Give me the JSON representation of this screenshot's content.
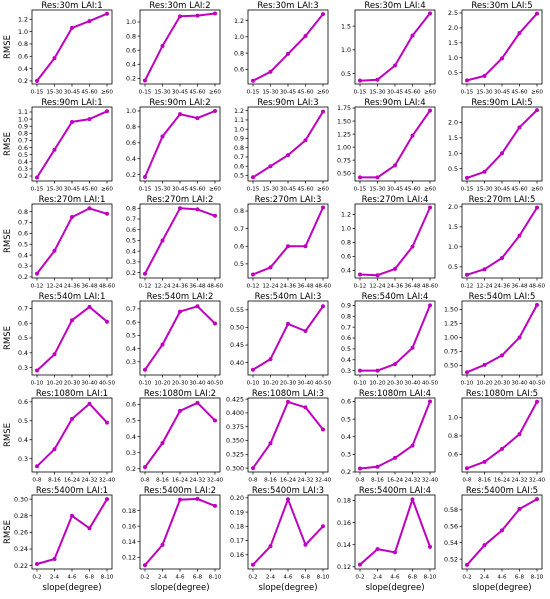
{
  "figure": {
    "ylabel": "RMSE",
    "xlabel": "slope(degree)",
    "line_color": "#bf00bf"
  },
  "chart_data": [
    {
      "type": "line",
      "title": "Res:30m   LAI:1",
      "categories": [
        "0-15",
        "15-30",
        "30-45",
        "45-60",
        "≥60"
      ],
      "values": [
        0.2,
        0.57,
        1.06,
        1.17,
        1.29
      ],
      "ylim": [
        0.15,
        1.35
      ],
      "yticks": [
        0.2,
        0.4,
        0.6,
        0.8,
        1.0,
        1.2
      ],
      "ytick_labels": [
        "0.2",
        "0.4",
        "0.6",
        "0.8",
        "1.0",
        "1.2"
      ]
    },
    {
      "type": "line",
      "title": "Res:30m   LAI:2",
      "categories": [
        "0-15",
        "15-30",
        "30-45",
        "45-60",
        "≥60"
      ],
      "values": [
        0.17,
        0.66,
        1.08,
        1.09,
        1.12
      ],
      "ylim": [
        0.12,
        1.17
      ],
      "yticks": [
        0.2,
        0.4,
        0.6,
        0.8,
        1.0
      ],
      "ytick_labels": [
        "0.2",
        "0.4",
        "0.6",
        "0.8",
        "1.0"
      ]
    },
    {
      "type": "line",
      "title": "Res:30m   LAI:3",
      "categories": [
        "0-15",
        "15-30",
        "30-45",
        "45-60",
        "≥60"
      ],
      "values": [
        0.46,
        0.57,
        0.79,
        1.01,
        1.28
      ],
      "ylim": [
        0.42,
        1.33
      ],
      "yticks": [
        0.6,
        0.8,
        1.0,
        1.2
      ],
      "ytick_labels": [
        "0.6",
        "0.8",
        "1.0",
        "1.2"
      ]
    },
    {
      "type": "line",
      "title": "Res:30m   LAI:4",
      "categories": [
        "0-15",
        "15-30",
        "30-45",
        "45-60",
        "≥60"
      ],
      "values": [
        0.35,
        0.37,
        0.67,
        1.3,
        1.77
      ],
      "ylim": [
        0.28,
        1.84
      ],
      "yticks": [
        0.5,
        1.0,
        1.5
      ],
      "ytick_labels": [
        "0.5",
        "1.0",
        "1.5"
      ]
    },
    {
      "type": "line",
      "title": "Res:30m   LAI:5",
      "categories": [
        "0-15",
        "15-30",
        "30-45",
        "45-60",
        "≥60"
      ],
      "values": [
        0.24,
        0.39,
        0.98,
        1.83,
        2.48
      ],
      "ylim": [
        0.12,
        2.6
      ],
      "yticks": [
        0.5,
        1.0,
        1.5,
        2.0,
        2.5
      ],
      "ytick_labels": [
        "0.5",
        "1.0",
        "1.5",
        "2.0",
        "2.5"
      ]
    },
    {
      "type": "line",
      "title": "Res:90m   LAI:1",
      "categories": [
        "0-15",
        "15-30",
        "30-45",
        "45-60",
        "≥60"
      ],
      "values": [
        0.18,
        0.57,
        0.96,
        1.0,
        1.11
      ],
      "ylim": [
        0.13,
        1.17
      ],
      "yticks": [
        0.2,
        0.3,
        0.4,
        0.5,
        0.6,
        0.7,
        0.8,
        0.9,
        1.0,
        1.1
      ],
      "ytick_labels": [
        "0.2",
        "0.3",
        "0.4",
        "0.5",
        "0.6",
        "0.7",
        "0.8",
        "0.9",
        "1.0",
        "1.1"
      ]
    },
    {
      "type": "line",
      "title": "Res:90m   LAI:2",
      "categories": [
        "0-15",
        "15-30",
        "30-45",
        "45-60",
        "≥60"
      ],
      "values": [
        0.17,
        0.68,
        0.96,
        0.91,
        1.0
      ],
      "ylim": [
        0.12,
        1.05
      ],
      "yticks": [
        0.2,
        0.4,
        0.6,
        0.8,
        1.0
      ],
      "ytick_labels": [
        "0.2",
        "0.4",
        "0.6",
        "0.8",
        "1.0"
      ]
    },
    {
      "type": "line",
      "title": "Res:90m   LAI:3",
      "categories": [
        "0-15",
        "15-30",
        "30-45",
        "45-60",
        "≥60"
      ],
      "values": [
        0.48,
        0.6,
        0.72,
        0.88,
        1.19
      ],
      "ylim": [
        0.44,
        1.24
      ],
      "yticks": [
        0.5,
        0.6,
        0.7,
        0.8,
        0.9,
        1.0,
        1.1,
        1.2
      ],
      "ytick_labels": [
        "0.5",
        "0.6",
        "0.7",
        "0.8",
        "0.9",
        "1.0",
        "1.1",
        "1.2"
      ]
    },
    {
      "type": "line",
      "title": "Res:90m   LAI:4",
      "categories": [
        "0-15",
        "15-30",
        "30-45",
        "45-60",
        "≥60"
      ],
      "values": [
        0.42,
        0.42,
        0.65,
        1.22,
        1.7
      ],
      "ylim": [
        0.35,
        1.77
      ],
      "yticks": [
        0.5,
        0.75,
        1.0,
        1.25,
        1.5,
        1.75
      ],
      "ytick_labels": [
        "0.50",
        "0.75",
        "1.00",
        "1.25",
        "1.50",
        "1.75"
      ]
    },
    {
      "type": "line",
      "title": "Res:90m   LAI:5",
      "categories": [
        "0-15",
        "15-30",
        "30-45",
        "45-60",
        "≥60"
      ],
      "values": [
        0.2,
        0.4,
        1.0,
        1.84,
        2.4
      ],
      "ylim": [
        0.1,
        2.5
      ],
      "yticks": [
        0.5,
        1.0,
        1.5,
        2.0
      ],
      "ytick_labels": [
        "0.5",
        "1.0",
        "1.5",
        "2.0"
      ]
    },
    {
      "type": "line",
      "title": "Res:270m   LAI:1",
      "categories": [
        "0-12",
        "12-24",
        "24-36",
        "36-48",
        "48-60"
      ],
      "values": [
        0.23,
        0.44,
        0.75,
        0.83,
        0.78
      ],
      "ylim": [
        0.19,
        0.87
      ],
      "yticks": [
        0.2,
        0.3,
        0.4,
        0.5,
        0.6,
        0.7,
        0.8
      ],
      "ytick_labels": [
        "0.2",
        "0.3",
        "0.4",
        "0.5",
        "0.6",
        "0.7",
        "0.8"
      ]
    },
    {
      "type": "line",
      "title": "Res:270m   LAI:2",
      "categories": [
        "0-12",
        "12-24",
        "24-36",
        "36-48",
        "48-60"
      ],
      "values": [
        0.19,
        0.5,
        0.8,
        0.79,
        0.73
      ],
      "ylim": [
        0.15,
        0.84
      ],
      "yticks": [
        0.2,
        0.3,
        0.4,
        0.5,
        0.6,
        0.7,
        0.8
      ],
      "ytick_labels": [
        "0.2",
        "0.3",
        "0.4",
        "0.5",
        "0.6",
        "0.7",
        "0.8"
      ]
    },
    {
      "type": "line",
      "title": "Res:270m   LAI:3",
      "categories": [
        "0-12",
        "12-24",
        "24-36",
        "36-48",
        "48-60"
      ],
      "values": [
        0.44,
        0.48,
        0.6,
        0.6,
        0.82
      ],
      "ylim": [
        0.42,
        0.84
      ],
      "yticks": [
        0.5,
        0.6,
        0.7,
        0.8
      ],
      "ytick_labels": [
        "0.5",
        "0.6",
        "0.7",
        "0.8"
      ]
    },
    {
      "type": "line",
      "title": "Res:270m   LAI:4",
      "categories": [
        "0-12",
        "12-24",
        "24-36",
        "36-48",
        "48-60"
      ],
      "values": [
        0.34,
        0.33,
        0.42,
        0.74,
        1.3
      ],
      "ylim": [
        0.29,
        1.35
      ],
      "yticks": [
        0.4,
        0.6,
        0.8,
        1.0,
        1.2
      ],
      "ytick_labels": [
        "0.4",
        "0.6",
        "0.8",
        "1.0",
        "1.2"
      ]
    },
    {
      "type": "line",
      "title": "Res:270m   LAI:5",
      "categories": [
        "0-12",
        "12-24",
        "24-36",
        "36-48",
        "48-60"
      ],
      "values": [
        0.3,
        0.44,
        0.72,
        1.28,
        1.98
      ],
      "ylim": [
        0.22,
        2.07
      ],
      "yticks": [
        0.5,
        1.0,
        1.5,
        2.0
      ],
      "ytick_labels": [
        "0.5",
        "1.0",
        "1.5",
        "2.0"
      ]
    },
    {
      "type": "line",
      "title": "Res:540m   LAI:1",
      "categories": [
        "0-10",
        "10-20",
        "20-30",
        "30-40",
        "40-50"
      ],
      "values": [
        0.28,
        0.39,
        0.62,
        0.71,
        0.61
      ],
      "ylim": [
        0.25,
        0.75
      ],
      "yticks": [
        0.3,
        0.4,
        0.5,
        0.6,
        0.7
      ],
      "ytick_labels": [
        "0.3",
        "0.4",
        "0.5",
        "0.6",
        "0.7"
      ]
    },
    {
      "type": "line",
      "title": "Res:540m   LAI:2",
      "categories": [
        "0-10",
        "10-20",
        "20-30",
        "30-40",
        "40-50"
      ],
      "values": [
        0.24,
        0.43,
        0.68,
        0.72,
        0.59
      ],
      "ylim": [
        0.2,
        0.76
      ],
      "yticks": [
        0.3,
        0.4,
        0.5,
        0.6,
        0.7
      ],
      "ytick_labels": [
        "0.3",
        "0.4",
        "0.5",
        "0.6",
        "0.7"
      ]
    },
    {
      "type": "line",
      "title": "Res:540m   LAI:3",
      "categories": [
        "0-10",
        "10-20",
        "20-30",
        "30-40",
        "40-50"
      ],
      "values": [
        0.38,
        0.41,
        0.51,
        0.49,
        0.56
      ],
      "ylim": [
        0.365,
        0.575
      ],
      "yticks": [
        0.4,
        0.45,
        0.5,
        0.55
      ],
      "ytick_labels": [
        "0.40",
        "0.45",
        "0.50",
        "0.55"
      ]
    },
    {
      "type": "line",
      "title": "Res:540m   LAI:4",
      "categories": [
        "0-10",
        "10-20",
        "20-30",
        "30-40",
        "40-50"
      ],
      "values": [
        0.3,
        0.3,
        0.36,
        0.51,
        0.9
      ],
      "ylim": [
        0.26,
        0.94
      ],
      "yticks": [
        0.3,
        0.4,
        0.5,
        0.6,
        0.7,
        0.8,
        0.9
      ],
      "ytick_labels": [
        "0.3",
        "0.4",
        "0.5",
        "0.6",
        "0.7",
        "0.8",
        "0.9"
      ]
    },
    {
      "type": "line",
      "title": "Res:540m   LAI:5",
      "categories": [
        "0-10",
        "10-20",
        "20-30",
        "30-40",
        "40-50"
      ],
      "values": [
        0.38,
        0.51,
        0.68,
        1.0,
        1.58
      ],
      "ylim": [
        0.33,
        1.65
      ],
      "yticks": [
        0.5,
        0.75,
        1.0,
        1.25,
        1.5
      ],
      "ytick_labels": [
        "0.50",
        "0.75",
        "1.00",
        "1.25",
        "1.50"
      ]
    },
    {
      "type": "line",
      "title": "Res:1080m   LAI:1",
      "categories": [
        "0-8",
        "8-16",
        "16-24",
        "24-32",
        "32-40"
      ],
      "values": [
        0.26,
        0.35,
        0.51,
        0.59,
        0.49
      ],
      "ylim": [
        0.23,
        0.62
      ],
      "yticks": [
        0.3,
        0.4,
        0.5,
        0.6
      ],
      "ytick_labels": [
        "0.3",
        "0.4",
        "0.5",
        "0.6"
      ]
    },
    {
      "type": "line",
      "title": "Res:1080m   LAI:2",
      "categories": [
        "0-8",
        "8-16",
        "16-24",
        "24-32",
        "32-40"
      ],
      "values": [
        0.21,
        0.36,
        0.56,
        0.61,
        0.5
      ],
      "ylim": [
        0.18,
        0.64
      ],
      "yticks": [
        0.2,
        0.3,
        0.4,
        0.5,
        0.6
      ],
      "ytick_labels": [
        "0.2",
        "0.3",
        "0.4",
        "0.5",
        "0.6"
      ]
    },
    {
      "type": "line",
      "title": "Res:1080m   LAI:3",
      "categories": [
        "0-8",
        "8-16",
        "16-24",
        "24-32",
        "32-40"
      ],
      "values": [
        0.3,
        0.345,
        0.42,
        0.41,
        0.37
      ],
      "ylim": [
        0.293,
        0.427
      ],
      "yticks": [
        0.3,
        0.325,
        0.35,
        0.375,
        0.4,
        0.425
      ],
      "ytick_labels": [
        "0.300",
        "0.325",
        "0.350",
        "0.375",
        "0.400",
        "0.425"
      ]
    },
    {
      "type": "line",
      "title": "Res:1080m   LAI:4",
      "categories": [
        "0-8",
        "8-16",
        "16-24",
        "24-32",
        "32-40"
      ],
      "values": [
        0.22,
        0.23,
        0.28,
        0.35,
        0.6
      ],
      "ylim": [
        0.2,
        0.62
      ],
      "yticks": [
        0.2,
        0.3,
        0.4,
        0.5,
        0.6
      ],
      "ytick_labels": [
        "0.2",
        "0.3",
        "0.4",
        "0.5",
        "0.6"
      ]
    },
    {
      "type": "line",
      "title": "Res:1080m   LAI:5",
      "categories": [
        "0-8",
        "8-16",
        "16-24",
        "24-32",
        "32-40"
      ],
      "values": [
        0.45,
        0.52,
        0.66,
        0.82,
        1.17
      ],
      "ylim": [
        0.41,
        1.21
      ],
      "yticks": [
        0.6,
        0.8,
        1.0
      ],
      "ytick_labels": [
        "0.6",
        "0.8",
        "1.0"
      ]
    },
    {
      "type": "line",
      "title": "Res:5400m   LAI:1",
      "categories": [
        "0-2",
        "2-4",
        "4-6",
        "6-8",
        "8-10"
      ],
      "values": [
        0.222,
        0.228,
        0.28,
        0.265,
        0.3
      ],
      "ylim": [
        0.216,
        0.305
      ],
      "yticks": [
        0.22,
        0.24,
        0.26,
        0.28,
        0.3
      ],
      "ytick_labels": [
        "0.22",
        "0.24",
        "0.26",
        "0.28",
        "0.30"
      ]
    },
    {
      "type": "line",
      "title": "Res:5400m   LAI:2",
      "categories": [
        "0-2",
        "2-4",
        "4-6",
        "6-8",
        "8-10"
      ],
      "values": [
        0.11,
        0.136,
        0.194,
        0.195,
        0.186
      ],
      "ylim": [
        0.105,
        0.2
      ],
      "yticks": [
        0.12,
        0.14,
        0.16,
        0.18
      ],
      "ytick_labels": [
        "0.12",
        "0.14",
        "0.16",
        "0.18"
      ]
    },
    {
      "type": "line",
      "title": "Res:5400m   LAI:3",
      "categories": [
        "0-2",
        "2-4",
        "4-6",
        "6-8",
        "8-10"
      ],
      "values": [
        0.153,
        0.166,
        0.199,
        0.167,
        0.18
      ],
      "ylim": [
        0.15,
        0.202
      ],
      "yticks": [
        0.16,
        0.17,
        0.18,
        0.19,
        0.2
      ],
      "ytick_labels": [
        "0.16",
        "0.17",
        "0.18",
        "0.19",
        "0.20"
      ]
    },
    {
      "type": "line",
      "title": "Res:5400m   LAI:4",
      "categories": [
        "0-2",
        "2-4",
        "4-6",
        "6-8",
        "8-10"
      ],
      "values": [
        0.122,
        0.136,
        0.133,
        0.181,
        0.138
      ],
      "ylim": [
        0.118,
        0.185
      ],
      "yticks": [
        0.12,
        0.14,
        0.16,
        0.18
      ],
      "ytick_labels": [
        "0.12",
        "0.14",
        "0.16",
        "0.18"
      ]
    },
    {
      "type": "line",
      "title": "Res:5400m   LAI:5",
      "categories": [
        "0-2",
        "2-4",
        "4-6",
        "6-8",
        "8-10"
      ],
      "values": [
        0.513,
        0.537,
        0.555,
        0.581,
        0.593
      ],
      "ylim": [
        0.508,
        0.598
      ],
      "yticks": [
        0.52,
        0.54,
        0.56,
        0.58
      ],
      "ytick_labels": [
        "0.52",
        "0.54",
        "0.56",
        "0.58"
      ]
    }
  ]
}
